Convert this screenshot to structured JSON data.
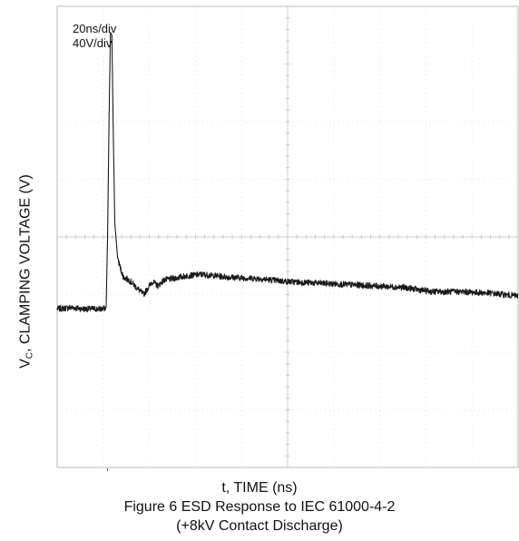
{
  "chart_data": {
    "type": "line",
    "annotations": [
      "20ns/div",
      "40V/div"
    ],
    "xlabel": "t, TIME (ns)",
    "ylabel_main": "V",
    "ylabel_sub": "C",
    "ylabel_rest": ", CLAMPING VOLTAGE (V)",
    "caption": [
      "Figure 6 ESD Response to IEC 61000-4-2",
      "(+8kV Contact Discharge)"
    ],
    "xlim": [
      0,
      160
    ],
    "ylim": [
      -160,
      160
    ],
    "grid": true,
    "series": [
      {
        "x": [
          0,
          5,
          9,
          16,
          17.0,
          17.5,
          18.0,
          18.5,
          19.0,
          19.5,
          20.0,
          21,
          22,
          23,
          25,
          27,
          30,
          33,
          35,
          37,
          40,
          45,
          50,
          55,
          60,
          70,
          80,
          90,
          100,
          110,
          120,
          130,
          140,
          150,
          160
        ],
        "y": [
          -50,
          -49,
          -50,
          -50,
          -49,
          0,
          80,
          142,
          140,
          70,
          10,
          -15,
          -22,
          -28,
          -30,
          -34,
          -40,
          -31,
          -34,
          -30,
          -29,
          -27,
          -26,
          -27,
          -28,
          -29,
          -31,
          -32,
          -33,
          -34,
          -35,
          -38,
          -38,
          -39,
          -41
        ]
      }
    ]
  }
}
